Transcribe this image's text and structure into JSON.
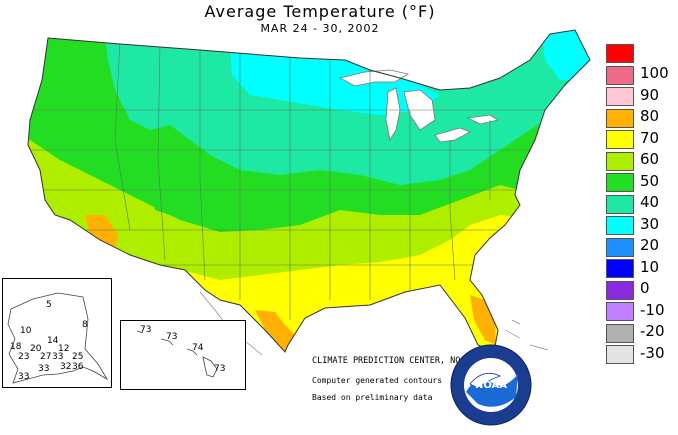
{
  "header": {
    "title": "Average Temperature (°F)",
    "date_range": "MAR 24 - 30, 2002"
  },
  "legend": {
    "items": [
      {
        "label": "100",
        "color": "#ff0000"
      },
      {
        "label": "90",
        "color": "#ee6a86"
      },
      {
        "label": "80",
        "color": "#ffc8d4"
      },
      {
        "label": "70",
        "color": "#ffb000"
      },
      {
        "label": "60",
        "color": "#ffff00"
      },
      {
        "label": "50",
        "color": "#b0ee00"
      },
      {
        "label": "40",
        "color": "#22dd22"
      },
      {
        "label": "30",
        "color": "#1de8a4"
      },
      {
        "label": "20",
        "color": "#00ffff"
      },
      {
        "label": "10",
        "color": "#1e90ff"
      },
      {
        "label": "0",
        "color": "#0000ff"
      },
      {
        "label": "-10",
        "color": "#8a2be2"
      },
      {
        "label": "-20",
        "color": "#c080ff"
      },
      {
        "label": "-30",
        "color": "#b0b0b0"
      },
      {
        "label": "",
        "color": "#e4e4e4"
      }
    ]
  },
  "credits": {
    "line1": "CLIMATE PREDICTION CENTER, NOAA",
    "line2": "Computer generated contours",
    "line3": "Based on preliminary data"
  },
  "logo": {
    "text": "NOAA",
    "ring_text": "NATIONAL OCEANIC AND ATMOSPHERIC ADMINISTRATION · U.S. DEPARTMENT OF COMMERCE"
  },
  "alaska_values": [
    "5",
    "10",
    "14",
    "18",
    "20",
    "12",
    "8",
    "23",
    "27",
    "33",
    "25",
    "33",
    "32",
    "36",
    "33"
  ],
  "hawaii_values": [
    "73",
    "73",
    "74",
    "73"
  ]
}
